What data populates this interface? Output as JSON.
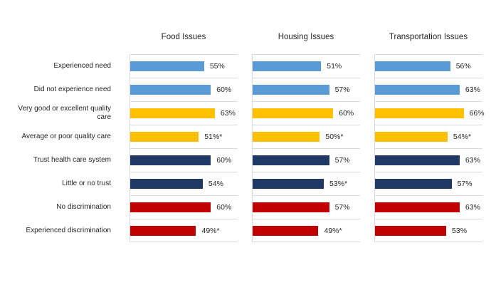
{
  "chart_data": {
    "type": "bar",
    "orientation": "horizontal",
    "title": "",
    "xlabel": "",
    "ylabel": "",
    "xlim": [
      0,
      80
    ],
    "grid": "row-separator-lines",
    "legend": "none",
    "value_labels": "end-of-bar",
    "categories": [
      "Experienced need",
      "Did not experience need",
      "Very good or excellent quality care",
      "Average or poor quality care",
      "Trust health care system",
      "Little or no trust",
      "No discrimination",
      "Experienced discrimination"
    ],
    "series": [
      {
        "name": "Food Issues",
        "values": [
          55,
          60,
          63,
          51,
          60,
          54,
          60,
          49
        ],
        "display": [
          "55%",
          "60%",
          "63%",
          "51%*",
          "60%",
          "54%",
          "60%",
          "49%*"
        ]
      },
      {
        "name": "Housing Issues",
        "values": [
          51,
          57,
          60,
          50,
          57,
          53,
          57,
          49
        ],
        "display": [
          "51%",
          "57%",
          "60%",
          "50%*",
          "57%",
          "53%*",
          "57%",
          "49%*"
        ]
      },
      {
        "name": "Transportation Issues",
        "values": [
          56,
          63,
          66,
          54,
          63,
          57,
          63,
          53
        ],
        "display": [
          "56%",
          "63%",
          "66%",
          "54%*",
          "63%",
          "57%",
          "63%",
          "53%"
        ]
      }
    ],
    "row_color_keys": [
      "blue",
      "blue",
      "gold",
      "gold",
      "navy",
      "navy",
      "red",
      "red"
    ],
    "colors": {
      "blue": "#5B9BD5",
      "gold": "#FFC000",
      "navy": "#1F3864",
      "red": "#C00000",
      "gridline": "#D9D9D9",
      "text": "#262626",
      "background": "#FFFFFF"
    }
  }
}
